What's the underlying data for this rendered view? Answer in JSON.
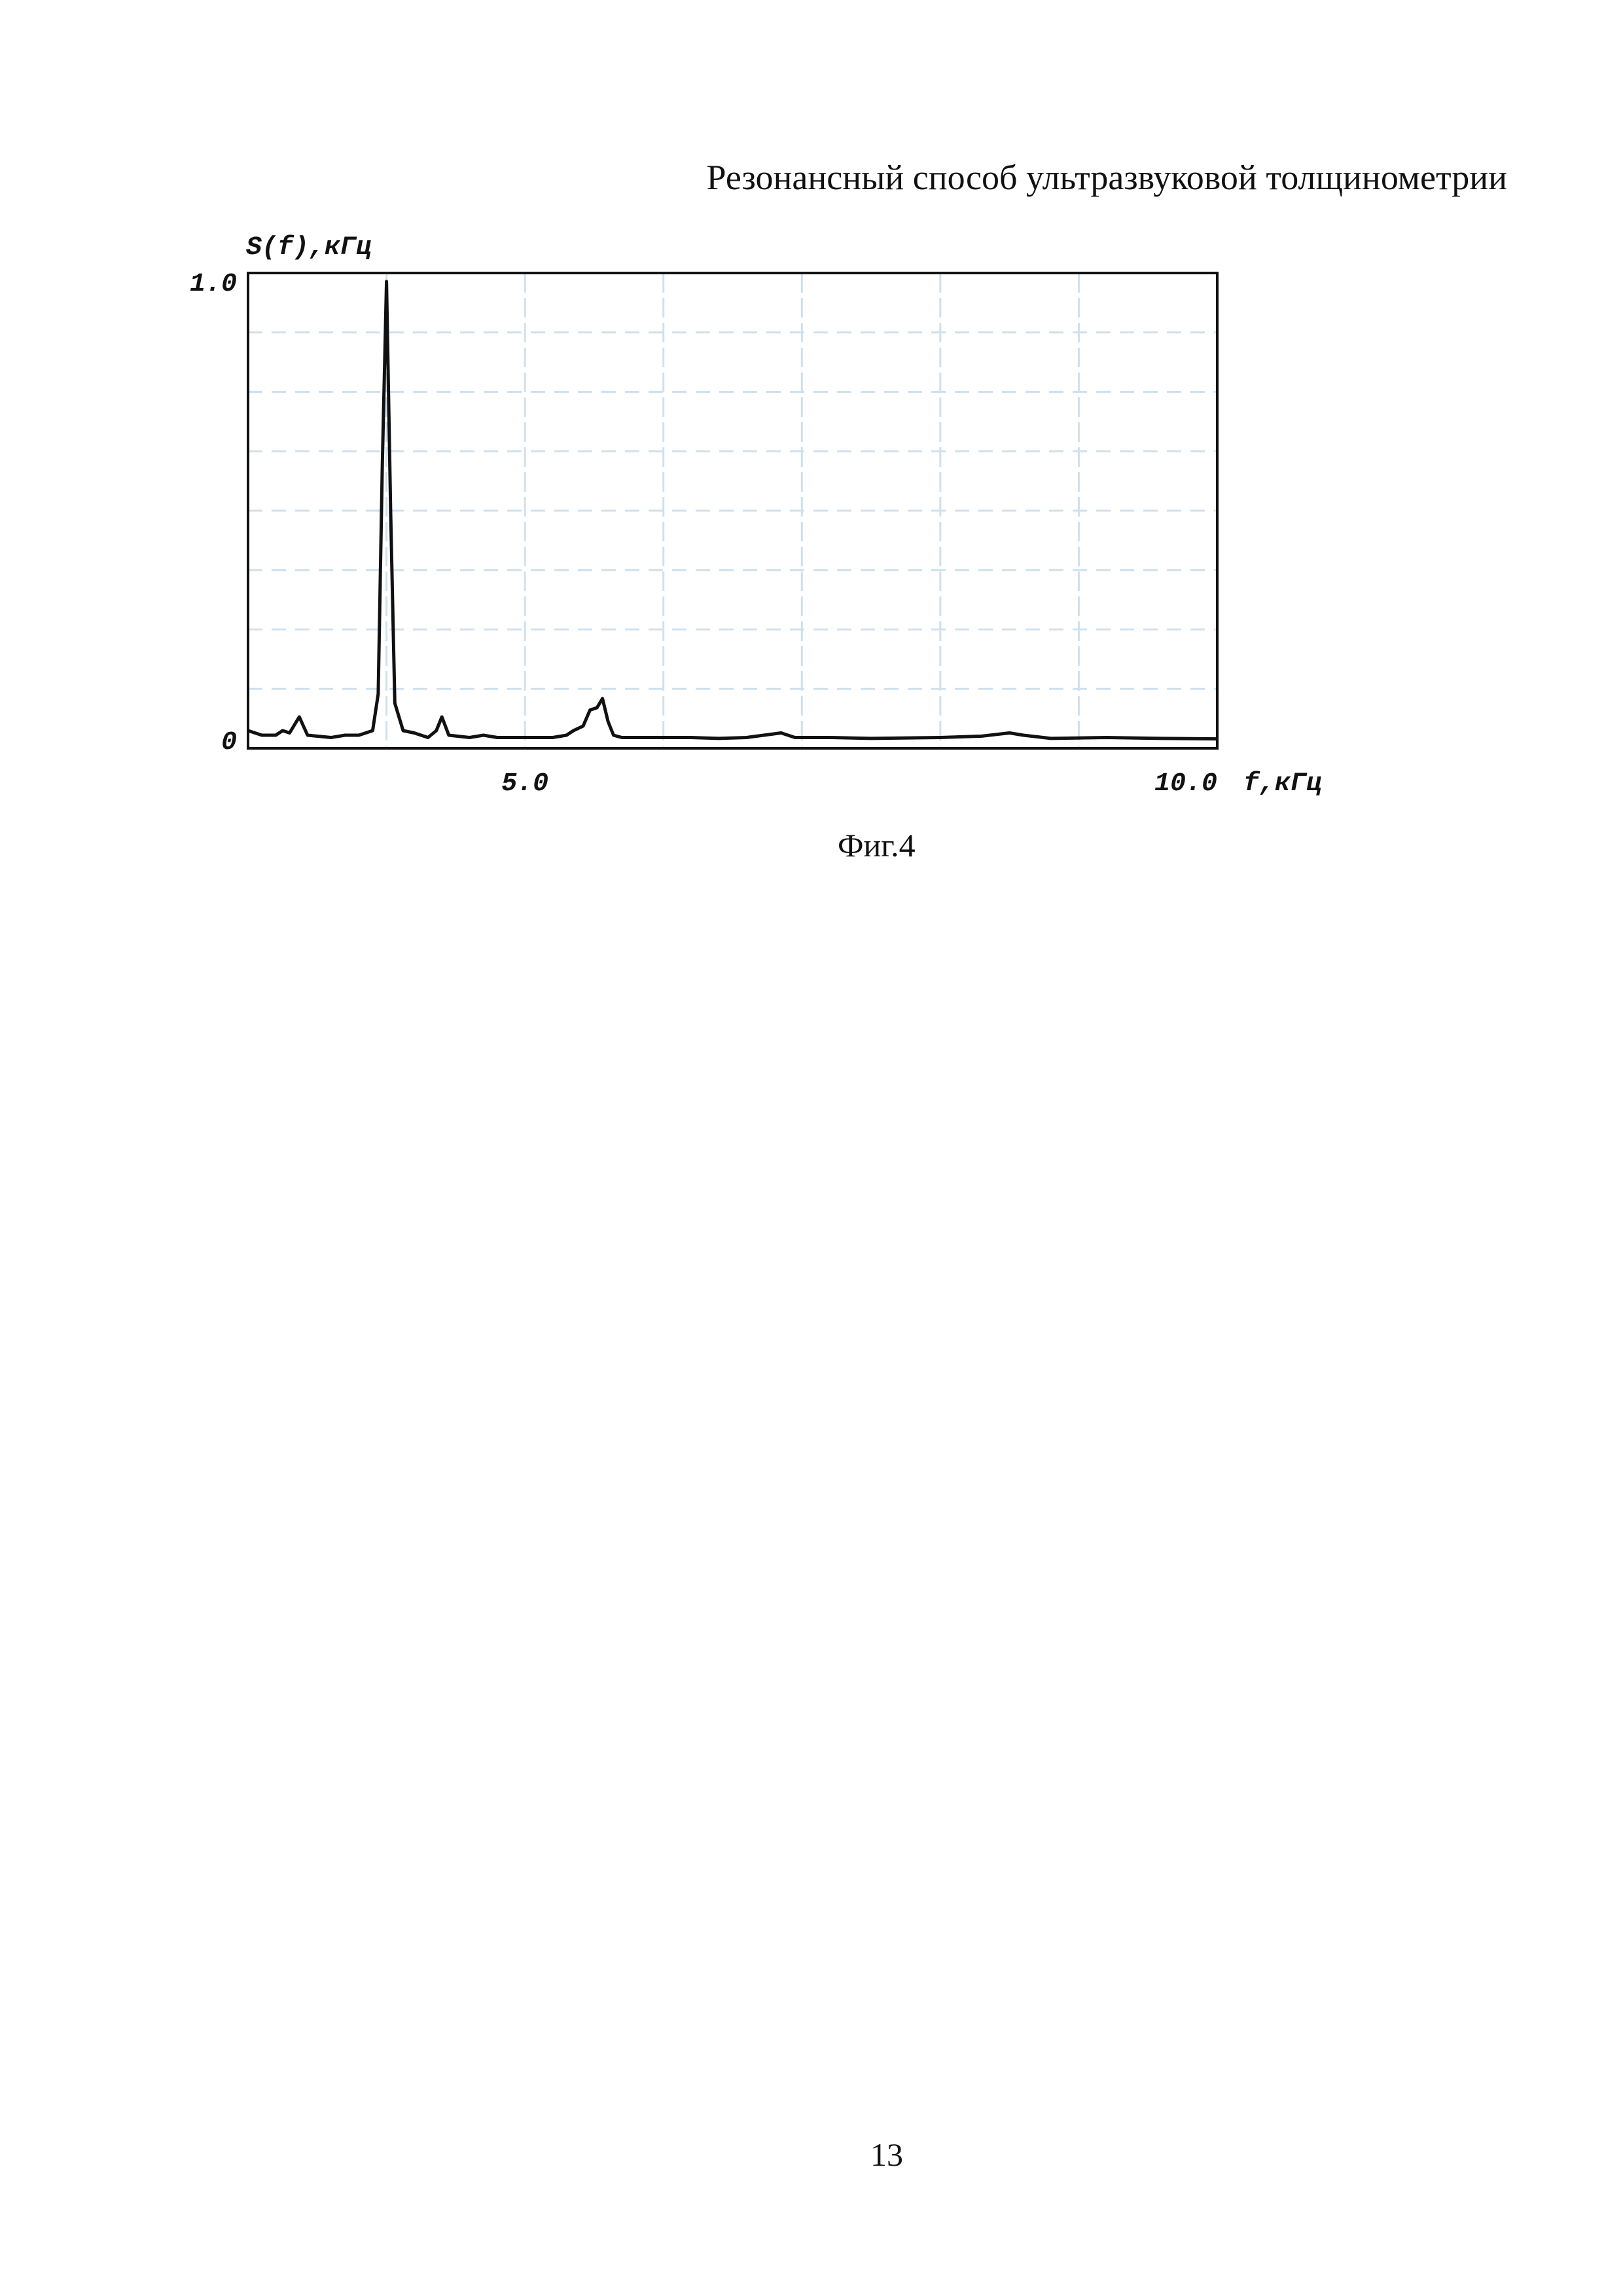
{
  "header": {
    "title": "Резонансный способ ультразвуковой толщинометрии"
  },
  "figure": {
    "caption": "Фиг.4"
  },
  "footer": {
    "page_number": "13"
  },
  "chart_data": {
    "type": "line",
    "title": "",
    "ylabel": "S(f),кГц",
    "xlabel": "f,кГц",
    "xlim": [
      3.0,
      10.0
    ],
    "ylim": [
      0,
      1.0
    ],
    "x_tick_labels": [
      {
        "value": 5.0,
        "label": "5.0"
      },
      {
        "value": 10.0,
        "label": "10.0"
      }
    ],
    "y_tick_labels": [
      {
        "value": 0,
        "label": "0"
      },
      {
        "value": 1.0,
        "label": "1.0"
      }
    ],
    "grid": true,
    "grid_x_step": 1.0,
    "grid_y_step": 0.125,
    "line_color": "#111111",
    "grid_color": "#cfe0ee",
    "series": [
      {
        "x": [
          3.0,
          3.1,
          3.2,
          3.25,
          3.3,
          3.37,
          3.43,
          3.6,
          3.7,
          3.8,
          3.9,
          3.94,
          3.97,
          4.0,
          4.03,
          4.06,
          4.12,
          4.2,
          4.3,
          4.36,
          4.4,
          4.45,
          4.6,
          4.7,
          4.8,
          5.0,
          5.2,
          5.3,
          5.35,
          5.42,
          5.47,
          5.52,
          5.56,
          5.6,
          5.64,
          5.7,
          6.0,
          6.2,
          6.4,
          6.6,
          6.85,
          6.95,
          7.2,
          7.5,
          8.0,
          8.3,
          8.5,
          8.6,
          8.8,
          9.2,
          9.6,
          10.0
        ],
        "y": [
          0.02,
          0.01,
          0.01,
          0.02,
          0.015,
          0.05,
          0.01,
          0.005,
          0.01,
          0.01,
          0.02,
          0.1,
          0.6,
          1.0,
          0.5,
          0.08,
          0.02,
          0.015,
          0.005,
          0.02,
          0.05,
          0.01,
          0.005,
          0.01,
          0.005,
          0.005,
          0.005,
          0.01,
          0.02,
          0.03,
          0.065,
          0.07,
          0.09,
          0.04,
          0.01,
          0.005,
          0.005,
          0.005,
          0.003,
          0.005,
          0.015,
          0.005,
          0.005,
          0.003,
          0.005,
          0.008,
          0.015,
          0.01,
          0.003,
          0.005,
          0.003,
          0.002
        ]
      }
    ]
  }
}
